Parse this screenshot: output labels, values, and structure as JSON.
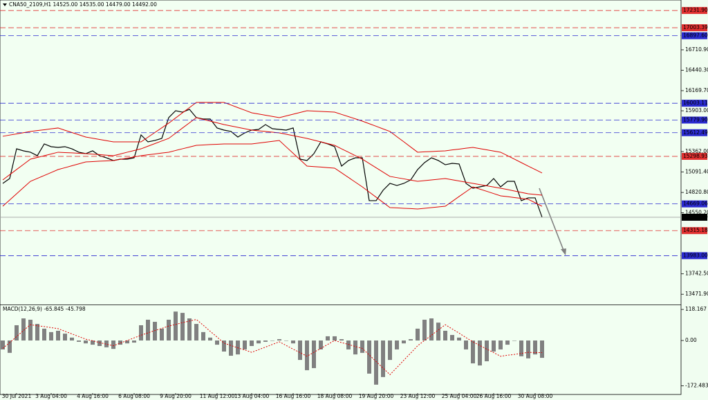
{
  "chart_data": [
    {
      "type": "line",
      "title": "CNA50_2109,H1  14525.00 14535.00 14479.00 14492.00",
      "categories": [
        null,
        null,
        "30 Jul 2021",
        null,
        null,
        null,
        null,
        "3 Aug 04:00",
        null,
        null,
        null,
        null,
        null,
        "4 Aug 16:00",
        null,
        null,
        null,
        null,
        null,
        "6 Aug 08:00",
        null,
        null,
        null,
        null,
        null,
        "9 Aug 20:00",
        null,
        null,
        null,
        null,
        null,
        "11 Aug 12:00",
        null,
        null,
        null,
        null,
        "13 Aug 04:00",
        null,
        null,
        null,
        null,
        null,
        "16 Aug 16:00",
        null,
        null,
        null,
        null,
        null,
        "18 Aug 08:00",
        null,
        null,
        null,
        null,
        null,
        "19 Aug 20:00",
        null,
        null,
        null,
        null,
        null,
        "23 Aug 12:00",
        null,
        null,
        null,
        null,
        null,
        "25 Aug 04:00",
        null,
        null,
        null,
        null,
        "26 Aug 16:00",
        null,
        null,
        null,
        null,
        null,
        "30 Aug 08:00",
        null
      ],
      "series": [
        {
          "name": "Close",
          "color": "#000000",
          "values": [
            14941,
            15005,
            15399,
            15372,
            15354,
            15308,
            15464,
            15427,
            15418,
            15427,
            15399,
            15354,
            15335,
            15372,
            15308,
            15280,
            15244,
            15262,
            15262,
            15280,
            15583,
            15491,
            15510,
            15537,
            15812,
            15904,
            15885,
            15922,
            15812,
            15794,
            15794,
            15675,
            15647,
            15629,
            15555,
            15610,
            15647,
            15656,
            15720,
            15665,
            15656,
            15647,
            15675,
            15262,
            15244,
            15335,
            15491,
            15464,
            15427,
            15170,
            15244,
            15280,
            15280,
            14712,
            14712,
            14849,
            14941,
            14913,
            14941,
            14987,
            15124,
            15216,
            15280,
            15244,
            15188,
            15207,
            15198,
            14941,
            14877,
            14895,
            14913,
            15005,
            14895,
            14968,
            14968,
            14712,
            14749,
            14749,
            14492
          ]
        },
        {
          "name": "Upper band",
          "color": "#e00000",
          "values": [
            15565,
            15581,
            15597,
            15613,
            15629,
            15641,
            15652,
            15664,
            15675,
            15645,
            15615,
            15585,
            15555,
            15539,
            15523,
            15507,
            15491,
            15491,
            15491,
            15491,
            15491,
            15553,
            15615,
            15677,
            15739,
            15808,
            15877,
            15945,
            16014,
            16014,
            16014,
            16014,
            16014,
            15980,
            15945,
            15911,
            15876,
            15860,
            15844,
            15828,
            15812,
            15835,
            15858,
            15881,
            15904,
            15899,
            15895,
            15890,
            15885,
            15855,
            15826,
            15796,
            15766,
            15732,
            15698,
            15663,
            15629,
            15560,
            15492,
            15423,
            15354,
            15359,
            15363,
            15368,
            15372,
            15384,
            15395,
            15407,
            15418,
            15402,
            15386,
            15370,
            15354,
            15308,
            15262,
            15216,
            15170,
            15125,
            15079
          ]
        },
        {
          "name": "Middle band",
          "color": "#e00000",
          "values": [
            14987,
            15056,
            15125,
            15193,
            15262,
            15285,
            15308,
            15331,
            15354,
            15349,
            15345,
            15340,
            15335,
            15328,
            15322,
            15315,
            15308,
            15331,
            15354,
            15376,
            15399,
            15434,
            15468,
            15503,
            15537,
            15606,
            15675,
            15743,
            15812,
            15789,
            15766,
            15743,
            15720,
            15702,
            15684,
            15665,
            15647,
            15638,
            15629,
            15619,
            15610,
            15592,
            15574,
            15555,
            15537,
            15514,
            15491,
            15468,
            15445,
            15399,
            15354,
            15308,
            15262,
            15205,
            15148,
            15090,
            15033,
            15017,
            15001,
            14984,
            14968,
            14977,
            14987,
            14996,
            15005,
            14989,
            14973,
            14957,
            14941,
            14925,
            14909,
            14893,
            14877,
            14859,
            14840,
            14822,
            14803,
            14794,
            14785
          ]
        },
        {
          "name": "Lower band",
          "color": "#e00000",
          "values": [
            14638,
            14721,
            14803,
            14886,
            14968,
            15007,
            15046,
            15085,
            15124,
            15149,
            15175,
            15200,
            15225,
            15230,
            15235,
            15239,
            15244,
            15260,
            15276,
            15292,
            15308,
            15320,
            15331,
            15343,
            15354,
            15377,
            15400,
            15422,
            15445,
            15450,
            15455,
            15459,
            15464,
            15464,
            15464,
            15464,
            15464,
            15475,
            15487,
            15498,
            15509,
            15424,
            15340,
            15255,
            15170,
            15163,
            15157,
            15150,
            15143,
            15081,
            15019,
            14957,
            14895,
            14826,
            14758,
            14689,
            14620,
            14616,
            14611,
            14607,
            14602,
            14611,
            14620,
            14629,
            14638,
            14702,
            14767,
            14831,
            14895,
            14865,
            14836,
            14806,
            14776,
            14765,
            14753,
            14742,
            14730,
            14684,
            14638
          ]
        }
      ],
      "ylim": [
        13336,
        17371
      ],
      "yticks": [
        {
          "value": 16710.9,
          "label": "16710.90"
        },
        {
          "value": 16440.3,
          "label": "16440.30"
        },
        {
          "value": 16169.7,
          "label": "16169.70"
        },
        {
          "value": 15903,
          "label": "15903.00"
        },
        {
          "value": 15362,
          "label": "15362.00"
        },
        {
          "value": 15091.4,
          "label": "15091.40"
        },
        {
          "value": 14820.8,
          "label": "14820.80"
        },
        {
          "value": 14550.2,
          "label": "14550.20"
        },
        {
          "value": 13742.5,
          "label": "13742.50"
        },
        {
          "value": 13471.9,
          "label": "13471.90"
        }
      ],
      "levels": [
        {
          "value": 17231.9,
          "label": "17231.90",
          "color": "#e03030",
          "dashed": true
        },
        {
          "value": 17003.39,
          "label": "17003.39",
          "color": "#e03030",
          "dashed": true
        },
        {
          "value": 16897.6,
          "label": "16897.60",
          "color": "#2b2bd0",
          "dashed": true
        },
        {
          "value": 16003.11,
          "label": "16003.11",
          "color": "#2b2bd0",
          "dashed": true
        },
        {
          "value": 15779.9,
          "label": "15779.90",
          "color": "#2b2bd0",
          "dashed": true
        },
        {
          "value": 15612.49,
          "label": "15612.49",
          "color": "#2b2bd0",
          "dashed": true
        },
        {
          "value": 15298.93,
          "label": "15298.93",
          "color": "#e03030",
          "dashed": true
        },
        {
          "value": 14669.06,
          "label": "14669.06",
          "color": "#2b2bd0",
          "dashed": true
        },
        {
          "value": 14492,
          "label": "14492.00",
          "color": "#000000",
          "dashed": false
        },
        {
          "value": 14315.18,
          "label": "14315.18",
          "color": "#e03030",
          "dashed": true
        },
        {
          "value": 13983,
          "label": "13983.00",
          "color": "#2b2bd0",
          "dashed": true
        }
      ],
      "grid": false
    },
    {
      "type": "macd",
      "title": "MACD(12,26,9) -65.845 -45.798",
      "series": [
        {
          "name": "MACD",
          "color": "#808080",
          "values": [
            -34,
            -47,
            58,
            84,
            79,
            63,
            45,
            32,
            37,
            26,
            11,
            -5,
            -11,
            -16,
            -21,
            -26,
            -32,
            -16,
            -11,
            -8,
            58,
            79,
            71,
            45,
            79,
            110,
            105,
            84,
            63,
            32,
            11,
            -16,
            -42,
            -58,
            -53,
            -34,
            -21,
            -11,
            -5,
            0,
            5,
            0,
            -11,
            -74,
            -113,
            -105,
            -34,
            16,
            16,
            5,
            -34,
            -53,
            -47,
            -126,
            -168,
            -139,
            -74,
            -34,
            -11,
            5,
            45,
            79,
            84,
            68,
            37,
            21,
            11,
            -34,
            -87,
            -95,
            -79,
            -42,
            -34,
            -16,
            0,
            -60,
            -68,
            -53,
            -66
          ]
        },
        {
          "name": "Signal",
          "color": "#e00000",
          "values": [
            -30,
            -8,
            15,
            38,
            60,
            56,
            53,
            49,
            45,
            35,
            25,
            15,
            5,
            -1,
            -8,
            -14,
            -20,
            -10,
            0,
            10,
            20,
            29,
            38,
            46,
            55,
            61,
            68,
            74,
            80,
            58,
            35,
            13,
            -10,
            -19,
            -28,
            -36,
            -45,
            -35,
            -25,
            -15,
            -5,
            -19,
            -33,
            -46,
            -60,
            -45,
            -30,
            -15,
            0,
            -8,
            -15,
            -23,
            -30,
            -55,
            -80,
            -105,
            -130,
            -103,
            -75,
            -48,
            -20,
            0,
            20,
            40,
            60,
            44,
            28,
            11,
            -5,
            -19,
            -33,
            -46,
            -60,
            -56,
            -53,
            -49,
            -45,
            -46,
            -46
          ]
        }
      ],
      "ylim": [
        -200,
        129
      ],
      "yticks": [
        118.167,
        {
          "value": 0,
          "label": "0.00"
        },
        -172.483
      ]
    }
  ]
}
